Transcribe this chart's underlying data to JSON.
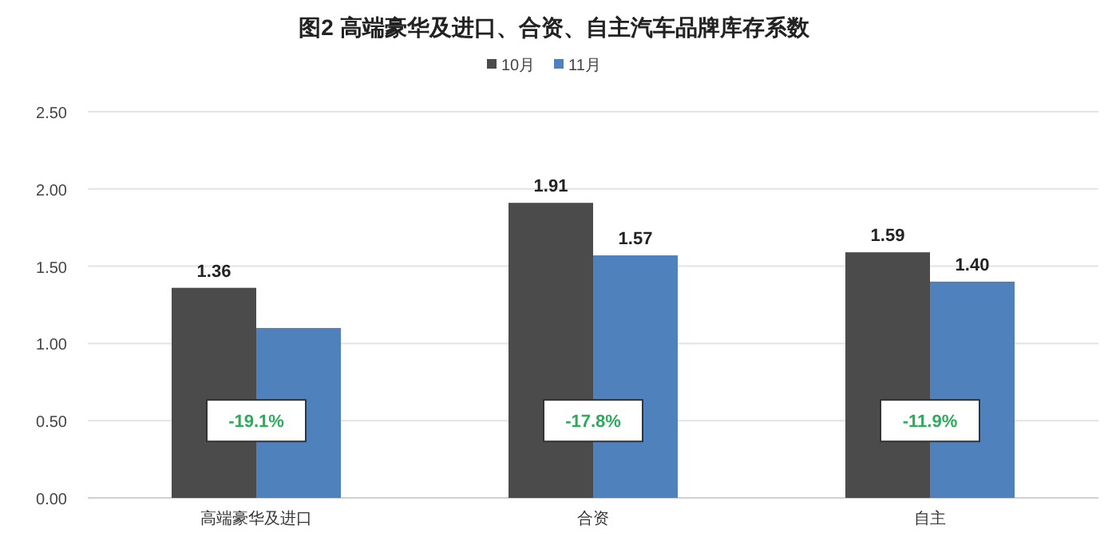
{
  "chart_data": {
    "type": "bar",
    "title": "图2  高端豪华及进口、合资、自主汽车品牌库存系数",
    "categories": [
      "高端豪华及进口",
      "合资",
      "自主"
    ],
    "series": [
      {
        "name": "10月",
        "color": "#4b4b4b",
        "values": [
          1.36,
          1.91,
          1.59
        ],
        "value_labels": [
          "1.36",
          "1.91",
          "1.59"
        ]
      },
      {
        "name": "11月",
        "color": "#4f81bd",
        "values": [
          1.1,
          1.57,
          1.4
        ],
        "value_labels": [
          null,
          "1.57",
          "1.40"
        ]
      }
    ],
    "ylim": [
      0,
      2.5
    ],
    "yticks": [
      {
        "value": 0,
        "label": "0.00"
      },
      {
        "value": 0.5,
        "label": "0.50"
      },
      {
        "value": 1,
        "label": "1.00"
      },
      {
        "value": 1.5,
        "label": "1.50"
      },
      {
        "value": 2,
        "label": "2.00"
      },
      {
        "value": 2.5,
        "label": "2.50"
      }
    ],
    "grid": "y",
    "legend": "top",
    "annotations": [
      {
        "text": "-19.1%",
        "x": "高端豪华及进口",
        "y": 0.5
      },
      {
        "text": "-17.8%",
        "x": "合资",
        "y": 0.5
      },
      {
        "text": "-11.9%",
        "x": "自主",
        "y": 0.5
      }
    ]
  }
}
